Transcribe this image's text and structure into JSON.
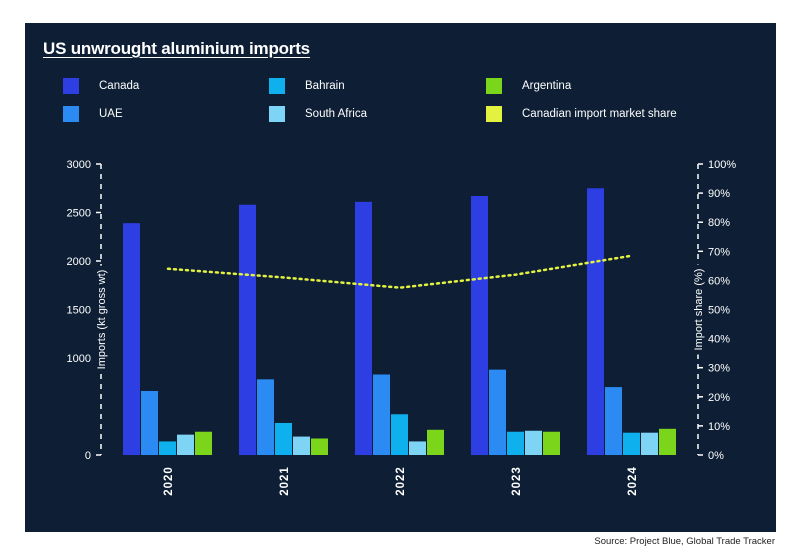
{
  "title": "US unwrought aluminium imports",
  "source": "Source: Project Blue, Global Trade Tracker",
  "colors": {
    "background": "#0d1e35",
    "axis": "#ffffff",
    "Canada": "#2d3ee3",
    "UAE": "#2c8bf3",
    "Bahrain": "#0fb0ee",
    "South Africa": "#7ed4f5",
    "Argentina": "#7bd51a",
    "Canadian import market share": "#e3f23f"
  },
  "legend": [
    {
      "label": "Canada",
      "color": "#2d3ee3"
    },
    {
      "label": "Bahrain",
      "color": "#0fb0ee"
    },
    {
      "label": "Argentina",
      "color": "#7bd51a"
    },
    {
      "label": "UAE",
      "color": "#2c8bf3"
    },
    {
      "label": "South Africa",
      "color": "#7ed4f5"
    },
    {
      "label": "Canadian import market share",
      "color": "#e3f23f"
    }
  ],
  "chart_data": {
    "type": "bar",
    "title": "US unwrought aluminium imports",
    "categories": [
      "2020",
      "2021",
      "2022",
      "2023",
      "2024"
    ],
    "series": [
      {
        "name": "Canada",
        "values": [
          2390,
          2580,
          2610,
          2670,
          2750
        ]
      },
      {
        "name": "UAE",
        "values": [
          660,
          780,
          830,
          880,
          700
        ]
      },
      {
        "name": "Bahrain",
        "values": [
          140,
          330,
          420,
          240,
          230
        ]
      },
      {
        "name": "South Africa",
        "values": [
          210,
          190,
          140,
          250,
          230
        ]
      },
      {
        "name": "Argentina",
        "values": [
          240,
          170,
          260,
          240,
          270
        ]
      }
    ],
    "line_series": {
      "name": "Canadian import market share",
      "axis": "right",
      "style": "dotted",
      "values": [
        64,
        61,
        57.5,
        62,
        68.5
      ]
    },
    "ylabel": "Imports (kt gross wt)",
    "ylim": [
      0,
      3000
    ],
    "yticks": [
      0,
      1000,
      1500,
      2000,
      2500,
      3000
    ],
    "y2label": "Import share (%)",
    "y2lim": [
      0,
      100
    ],
    "y2ticks": [
      "0%",
      "10%",
      "20%",
      "30%",
      "40%",
      "50%",
      "60%",
      "70%",
      "80%",
      "90%",
      "100%"
    ],
    "grid": false,
    "legend_position": "top"
  }
}
